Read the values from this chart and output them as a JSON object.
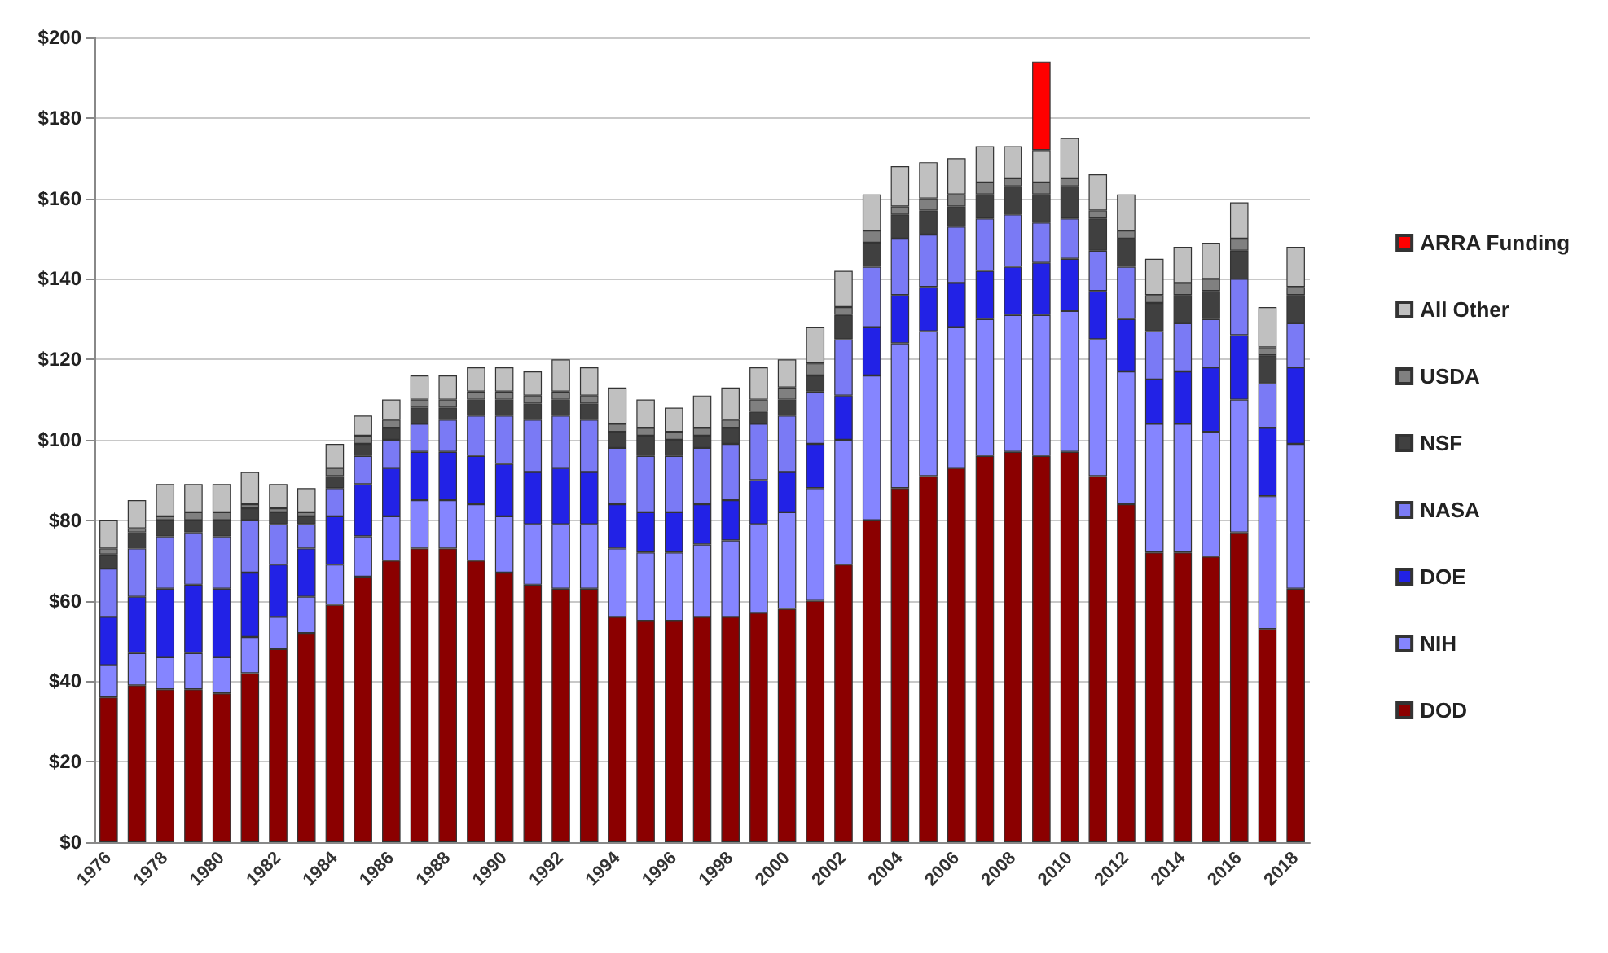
{
  "chart_data": {
    "type": "bar",
    "stacked": true,
    "categories": [
      "1976",
      null,
      "1978",
      null,
      "1980",
      null,
      "1982",
      null,
      "1984",
      null,
      "1986",
      null,
      "1988",
      null,
      "1990",
      null,
      "1992",
      null,
      "1994",
      null,
      "1996",
      null,
      "1998",
      null,
      "2000",
      null,
      "2002",
      null,
      "2004",
      null,
      "2006",
      null,
      "2008",
      null,
      "2010",
      null,
      "2012",
      null,
      "2014",
      null,
      "2016",
      null,
      "2018"
    ],
    "series": [
      {
        "name": "DOD",
        "color": "#8b0000",
        "values": [
          36,
          39,
          38,
          38,
          37,
          42,
          48,
          52,
          59,
          66,
          70,
          73,
          73,
          70,
          67,
          64,
          63,
          63,
          56,
          55,
          55,
          56,
          56,
          57,
          58,
          60,
          69,
          80,
          88,
          91,
          93,
          96,
          97,
          96,
          97,
          91,
          84,
          72,
          72,
          71,
          77,
          53,
          63
        ]
      },
      {
        "name": "NIH",
        "color": "#8585ff",
        "values": [
          8,
          8,
          8,
          9,
          9,
          9,
          8,
          9,
          10,
          10,
          11,
          12,
          12,
          14,
          14,
          15,
          16,
          16,
          17,
          17,
          17,
          18,
          19,
          22,
          24,
          28,
          31,
          36,
          36,
          36,
          35,
          34,
          34,
          35,
          35,
          34,
          33,
          32,
          32,
          31,
          33,
          33,
          36
        ]
      },
      {
        "name": "DOE",
        "color": "#2222e6",
        "values": [
          12,
          14,
          17,
          17,
          17,
          16,
          13,
          12,
          12,
          13,
          12,
          12,
          12,
          12,
          13,
          13,
          14,
          13,
          11,
          10,
          10,
          10,
          10,
          11,
          10,
          11,
          11,
          12,
          12,
          11,
          11,
          12,
          12,
          13,
          13,
          12,
          13,
          11,
          13,
          16,
          16,
          17,
          19
        ]
      },
      {
        "name": "NASA",
        "color": "#7a7af5",
        "values": [
          12,
          12,
          13,
          13,
          13,
          13,
          10,
          6,
          7,
          7,
          7,
          7,
          8,
          10,
          12,
          13,
          13,
          13,
          14,
          14,
          14,
          14,
          14,
          14,
          14,
          13,
          14,
          15,
          14,
          13,
          14,
          13,
          13,
          10,
          10,
          10,
          13,
          12,
          12,
          12,
          14,
          11,
          11
        ]
      },
      {
        "name": "NSF",
        "color": "#404040",
        "values": [
          3.5,
          4,
          4,
          3,
          4,
          3,
          3,
          2,
          3,
          3,
          3,
          4,
          3,
          4,
          4,
          4,
          4,
          4,
          4,
          5,
          4,
          3,
          4,
          3,
          4,
          4,
          6,
          6,
          6,
          6,
          5,
          6,
          7,
          7,
          8,
          8,
          7,
          7,
          7,
          7,
          7,
          7,
          7
        ]
      },
      {
        "name": "USDA",
        "color": "#808080",
        "values": [
          1.5,
          1,
          1,
          2,
          2,
          1,
          1,
          1,
          2,
          2,
          2,
          2,
          2,
          2,
          2,
          2,
          2,
          2,
          2,
          2,
          2,
          2,
          2,
          3,
          3,
          3,
          2,
          3,
          2,
          3,
          3,
          3,
          2,
          3,
          2,
          2,
          2,
          2,
          3,
          3,
          3,
          2,
          2
        ]
      },
      {
        "name": "All Other",
        "color": "#c0c0c0",
        "values": [
          7,
          7,
          8,
          7,
          7,
          8,
          6,
          6,
          6,
          5,
          5,
          6,
          6,
          6,
          6,
          6,
          8,
          7,
          9,
          7,
          6,
          8,
          8,
          8,
          7,
          9,
          9,
          9,
          10,
          9,
          9,
          9,
          8,
          8,
          10,
          9,
          9,
          9,
          9,
          9,
          9,
          10,
          10
        ]
      },
      {
        "name": "ARRA Funding",
        "color": "#ff0000",
        "values": [
          null,
          null,
          null,
          null,
          null,
          null,
          null,
          null,
          null,
          null,
          null,
          null,
          null,
          null,
          null,
          null,
          null,
          null,
          null,
          null,
          null,
          null,
          null,
          null,
          null,
          null,
          null,
          null,
          null,
          null,
          null,
          null,
          null,
          22,
          null,
          null,
          null,
          null,
          null,
          null,
          null,
          null,
          null
        ]
      }
    ],
    "ylim": [
      0,
      200
    ],
    "yticks": [
      {
        "value": 0,
        "label": "$0"
      },
      {
        "value": 20,
        "label": "$20"
      },
      {
        "value": 40,
        "label": "$40"
      },
      {
        "value": 60,
        "label": "$60"
      },
      {
        "value": 80,
        "label": "$80"
      },
      {
        "value": 100,
        "label": "$100"
      },
      {
        "value": 120,
        "label": "$120"
      },
      {
        "value": 140,
        "label": "$140"
      },
      {
        "value": 160,
        "label": "$160"
      },
      {
        "value": 180,
        "label": "$180"
      },
      {
        "value": 200,
        "label": "$200"
      }
    ],
    "grid": "y",
    "legend": "right"
  }
}
